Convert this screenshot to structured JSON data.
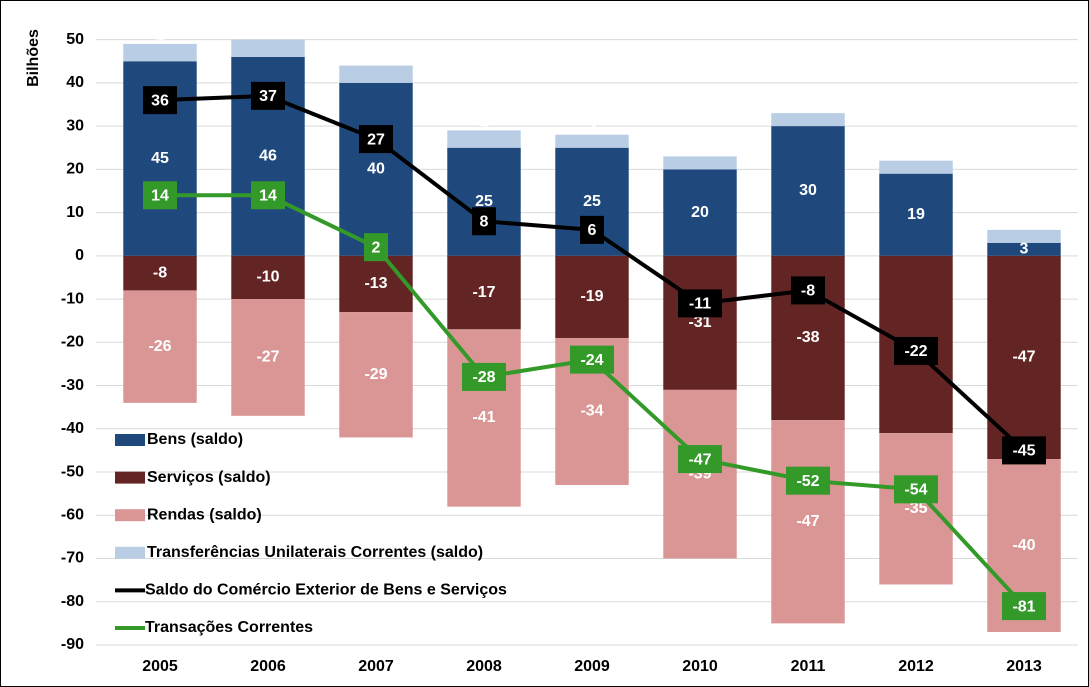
{
  "chart_data": {
    "type": "bar",
    "y_label": "Bilhões",
    "categories": [
      "2005",
      "2006",
      "2007",
      "2008",
      "2009",
      "2010",
      "2011",
      "2012",
      "2013"
    ],
    "series": [
      {
        "name": "Bens (saldo)",
        "type": "bar",
        "color": "#1f497d",
        "values": [
          45,
          46,
          40,
          25,
          25,
          20,
          30,
          19,
          3
        ]
      },
      {
        "name": "Serviços (saldo)",
        "type": "bar",
        "color": "#632523",
        "values": [
          -8,
          -10,
          -13,
          -17,
          -19,
          -31,
          -38,
          -41,
          -47
        ]
      },
      {
        "name": "Rendas (saldo)",
        "type": "bar",
        "color": "#d99694",
        "values": [
          -26,
          -27,
          -29,
          -41,
          -34,
          -39,
          -47,
          -35,
          -40
        ]
      },
      {
        "name": "Transferências Unilaterais Correntes (saldo)",
        "type": "bar",
        "color": "#b9cde5",
        "values": [
          4,
          4,
          4,
          4,
          3,
          3,
          3,
          3,
          3
        ]
      },
      {
        "name": "Saldo do Comércio Exterior de Bens e Serviços",
        "type": "line",
        "color": "#000000",
        "values": [
          36,
          37,
          27,
          8,
          6,
          -11,
          -8,
          -22,
          -45
        ]
      },
      {
        "name": "Transações Correntes",
        "type": "line",
        "color": "#339a2a",
        "values": [
          14,
          14,
          2,
          -28,
          -24,
          -47,
          -52,
          -54,
          -81
        ]
      }
    ],
    "ylim": [
      -90,
      55
    ],
    "yticks": [
      -90,
      -80,
      -70,
      -60,
      -50,
      -40,
      -30,
      -20,
      -10,
      0,
      10,
      20,
      30,
      40,
      50
    ],
    "grid": true,
    "legend": "lower left"
  }
}
